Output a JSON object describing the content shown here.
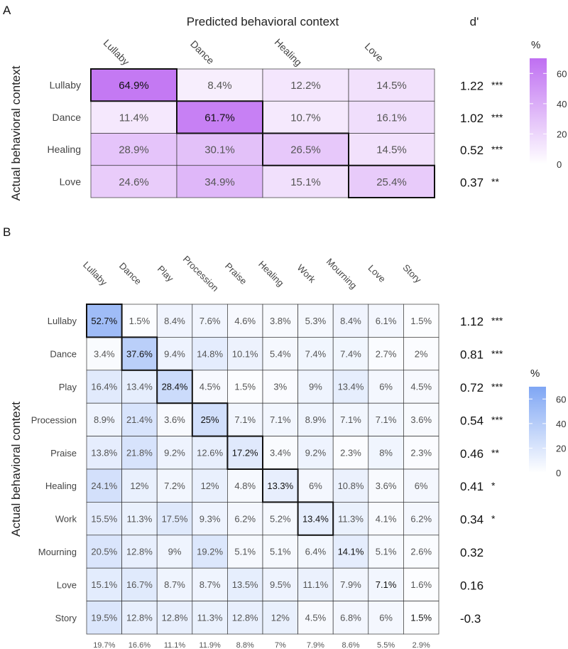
{
  "chart_data": [
    {
      "type": "heatmap",
      "panel_label": "A",
      "title": "Predicted behavioral context",
      "ylabel": "Actual behavioral context",
      "dprime_label": "d'",
      "columns": [
        "Lullaby",
        "Dance",
        "Healing",
        "Love"
      ],
      "rows": [
        "Lullaby",
        "Dance",
        "Healing",
        "Love"
      ],
      "cells": [
        [
          "64.9%",
          "8.4%",
          "12.2%",
          "14.5%"
        ],
        [
          "11.4%",
          "61.7%",
          "10.7%",
          "16.1%"
        ],
        [
          "28.9%",
          "30.1%",
          "26.5%",
          "14.5%"
        ],
        [
          "24.6%",
          "34.9%",
          "15.1%",
          "25.4%"
        ]
      ],
      "values": [
        [
          64.9,
          8.4,
          12.2,
          14.5
        ],
        [
          11.4,
          61.7,
          10.7,
          16.1
        ],
        [
          28.9,
          30.1,
          26.5,
          14.5
        ],
        [
          24.6,
          34.9,
          15.1,
          25.4
        ]
      ],
      "dprime": [
        "1.22",
        "1.02",
        "0.52",
        "0.37"
      ],
      "significance": [
        "***",
        "***",
        "***",
        "**"
      ],
      "legend": {
        "title": "%",
        "ticks": [
          "0",
          "20",
          "40",
          "60"
        ],
        "tick_values": [
          0,
          20,
          40,
          60
        ],
        "range": [
          0,
          70
        ],
        "color_low": "#ffffff",
        "color_high": "#bf6ff2"
      },
      "diagonal_outlined": true
    },
    {
      "type": "heatmap",
      "panel_label": "B",
      "ylabel": "Actual behavioral context",
      "columns": [
        "Lullaby",
        "Dance",
        "Play",
        "Procession",
        "Praise",
        "Healing",
        "Work",
        "Mourning",
        "Love",
        "Story"
      ],
      "rows": [
        "Lullaby",
        "Dance",
        "Play",
        "Procession",
        "Praise",
        "Healing",
        "Work",
        "Mourning",
        "Love",
        "Story"
      ],
      "cells": [
        [
          "52.7%",
          "1.5%",
          "8.4%",
          "7.6%",
          "4.6%",
          "3.8%",
          "5.3%",
          "8.4%",
          "6.1%",
          "1.5%"
        ],
        [
          "3.4%",
          "37.6%",
          "9.4%",
          "14.8%",
          "10.1%",
          "5.4%",
          "7.4%",
          "7.4%",
          "2.7%",
          "2%"
        ],
        [
          "16.4%",
          "13.4%",
          "28.4%",
          "4.5%",
          "1.5%",
          "3%",
          "9%",
          "13.4%",
          "6%",
          "4.5%"
        ],
        [
          "8.9%",
          "21.4%",
          "3.6%",
          "25%",
          "7.1%",
          "7.1%",
          "8.9%",
          "7.1%",
          "7.1%",
          "3.6%"
        ],
        [
          "13.8%",
          "21.8%",
          "9.2%",
          "12.6%",
          "17.2%",
          "3.4%",
          "9.2%",
          "2.3%",
          "8%",
          "2.3%"
        ],
        [
          "24.1%",
          "12%",
          "7.2%",
          "12%",
          "4.8%",
          "13.3%",
          "6%",
          "10.8%",
          "3.6%",
          "6%"
        ],
        [
          "15.5%",
          "11.3%",
          "17.5%",
          "9.3%",
          "6.2%",
          "5.2%",
          "13.4%",
          "11.3%",
          "4.1%",
          "6.2%"
        ],
        [
          "20.5%",
          "12.8%",
          "9%",
          "19.2%",
          "5.1%",
          "5.1%",
          "6.4%",
          "14.1%",
          "5.1%",
          "2.6%"
        ],
        [
          "15.1%",
          "16.7%",
          "8.7%",
          "8.7%",
          "13.5%",
          "9.5%",
          "11.1%",
          "7.9%",
          "7.1%",
          "1.6%"
        ],
        [
          "19.5%",
          "12.8%",
          "12.8%",
          "11.3%",
          "12.8%",
          "12%",
          "4.5%",
          "6.8%",
          "6%",
          "1.5%"
        ]
      ],
      "values": [
        [
          52.7,
          1.5,
          8.4,
          7.6,
          4.6,
          3.8,
          5.3,
          8.4,
          6.1,
          1.5
        ],
        [
          3.4,
          37.6,
          9.4,
          14.8,
          10.1,
          5.4,
          7.4,
          7.4,
          2.7,
          2
        ],
        [
          16.4,
          13.4,
          28.4,
          4.5,
          1.5,
          3,
          9,
          13.4,
          6,
          4.5
        ],
        [
          8.9,
          21.4,
          3.6,
          25,
          7.1,
          7.1,
          8.9,
          7.1,
          7.1,
          3.6
        ],
        [
          13.8,
          21.8,
          9.2,
          12.6,
          17.2,
          3.4,
          9.2,
          2.3,
          8,
          2.3
        ],
        [
          24.1,
          12,
          7.2,
          12,
          4.8,
          13.3,
          6,
          10.8,
          3.6,
          6
        ],
        [
          15.5,
          11.3,
          17.5,
          9.3,
          6.2,
          5.2,
          13.4,
          11.3,
          4.1,
          6.2
        ],
        [
          20.5,
          12.8,
          9,
          19.2,
          5.1,
          5.1,
          6.4,
          14.1,
          5.1,
          2.6
        ],
        [
          15.1,
          16.7,
          8.7,
          8.7,
          13.5,
          9.5,
          11.1,
          7.9,
          7.1,
          1.6
        ],
        [
          19.5,
          12.8,
          12.8,
          11.3,
          12.8,
          12,
          4.5,
          6.8,
          6,
          1.5
        ]
      ],
      "dprime": [
        "1.12",
        "0.81",
        "0.72",
        "0.54",
        "0.46",
        "0.41",
        "0.34",
        "0.32",
        "0.16",
        "-0.3"
      ],
      "significance": [
        "***",
        "***",
        "***",
        "***",
        "**",
        "*",
        "*",
        "",
        "",
        ""
      ],
      "column_footer": [
        "19.7%",
        "16.6%",
        "11.1%",
        "11.9%",
        "8.8%",
        "7%",
        "7.9%",
        "8.6%",
        "5.5%",
        "2.9%"
      ],
      "legend": {
        "title": "%",
        "ticks": [
          "0",
          "20",
          "40",
          "60"
        ],
        "tick_values": [
          0,
          20,
          40,
          60
        ],
        "range": [
          0,
          70
        ],
        "color_low": "#ffffff",
        "color_high": "#7fa6f4"
      },
      "outlined_cells": [
        [
          0,
          0
        ],
        [
          1,
          1
        ],
        [
          2,
          2
        ],
        [
          3,
          3
        ],
        [
          4,
          4
        ],
        [
          5,
          5
        ],
        [
          6,
          6
        ]
      ]
    }
  ]
}
